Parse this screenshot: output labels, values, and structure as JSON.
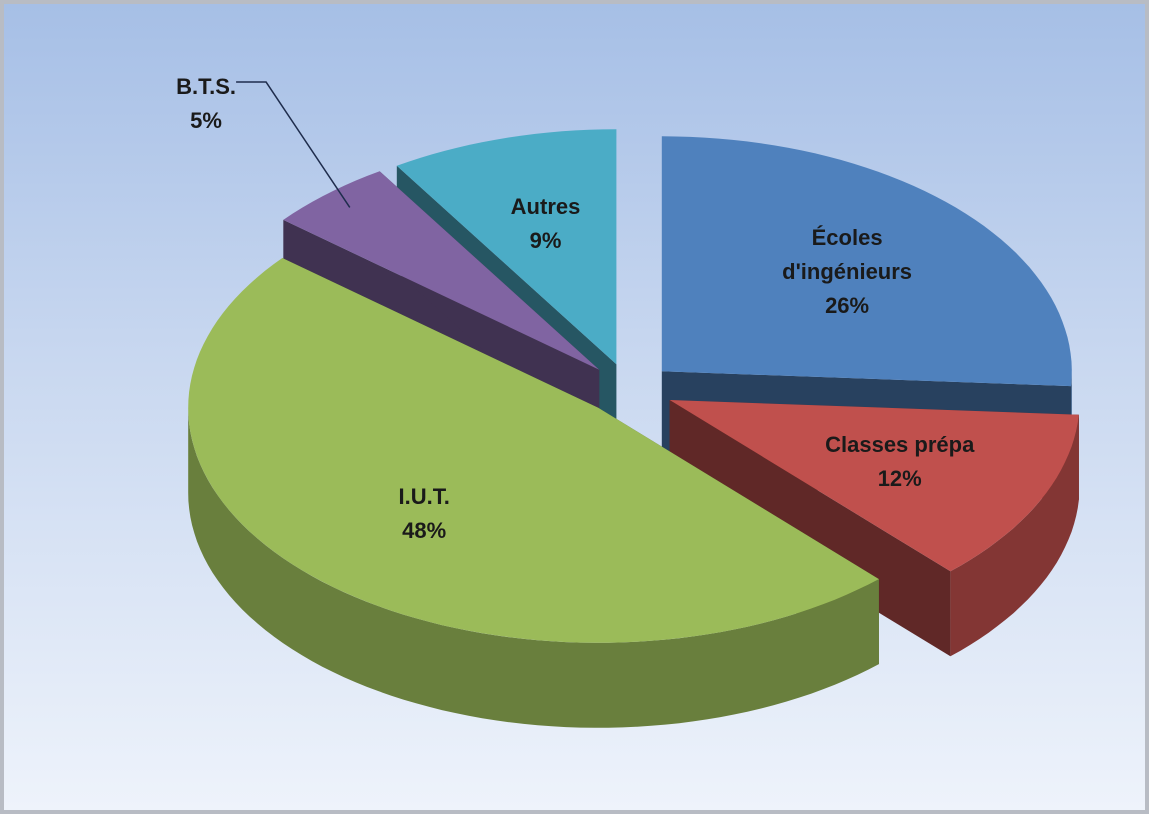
{
  "chart_data": {
    "type": "pie",
    "style": "3d-exploded",
    "categories": [
      "Écoles d'ingénieurs",
      "Classes prépa",
      "I.U.T.",
      "B.T.S.",
      "Autres"
    ],
    "values": [
      26,
      12,
      48,
      5,
      9
    ],
    "value_labels": [
      "26%",
      "12%",
      "48%",
      "5%",
      "9%"
    ],
    "colors": [
      "#4f81bd",
      "#c0504d",
      "#9bbb59",
      "#8064a2",
      "#4bacc6"
    ]
  }
}
